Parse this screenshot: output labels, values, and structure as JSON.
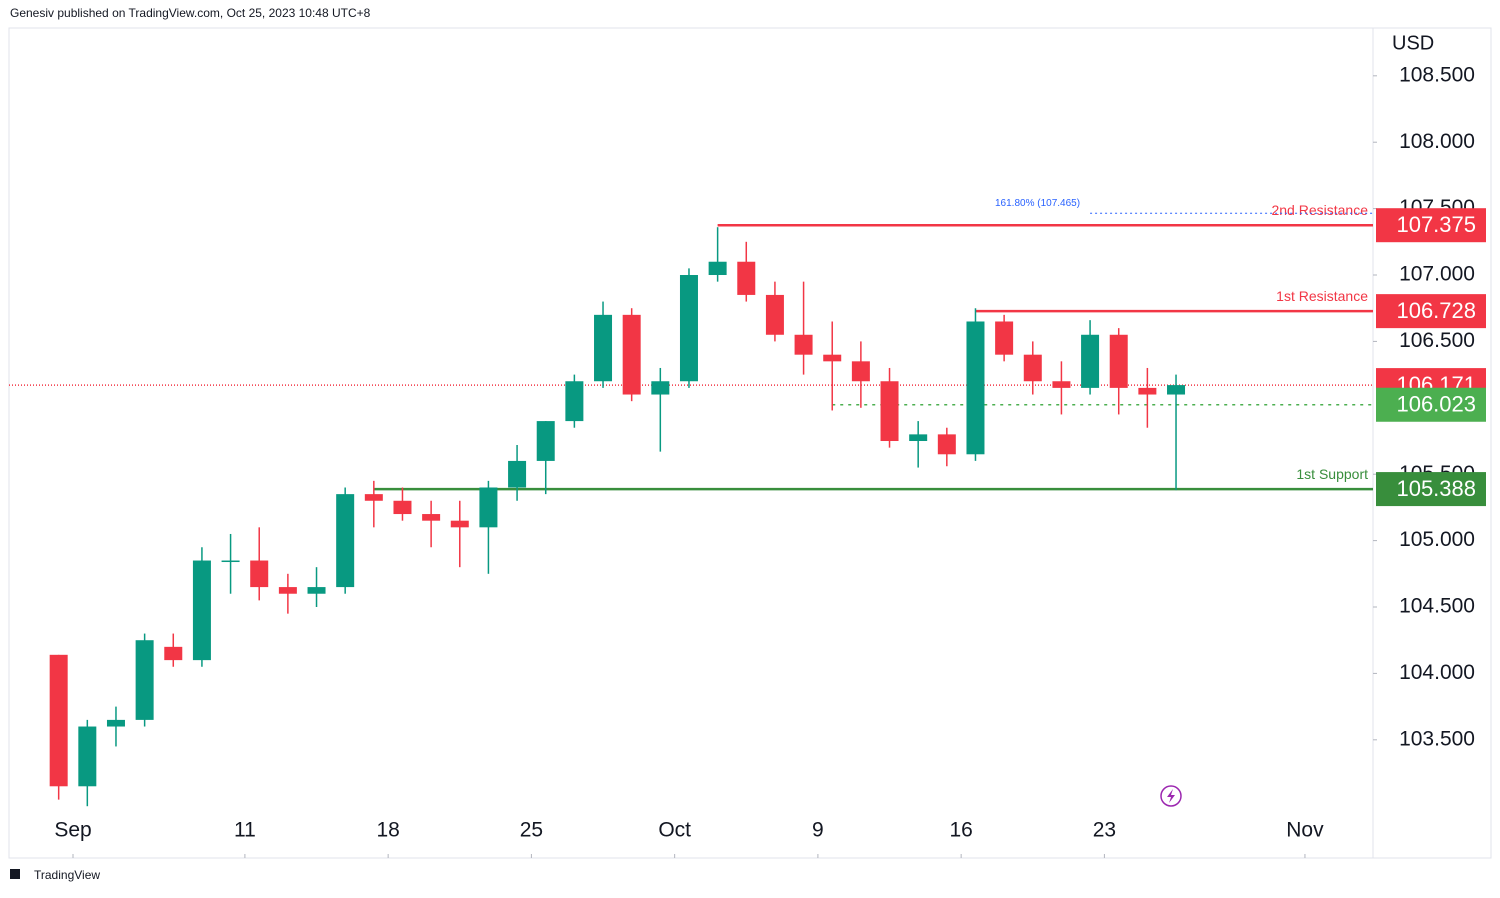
{
  "header": "Genesiv published on TradingView.com, Oct 25, 2023 10:48 UTC+8",
  "footer": "TradingView",
  "chart_data": {
    "type": "candlestick",
    "currency": "USD",
    "up_color": "#089981",
    "down_color": "#f23645",
    "x": [
      "2023-08-31",
      "2023-09-01",
      "2023-09-04",
      "2023-09-05",
      "2023-09-06",
      "2023-09-07",
      "2023-09-08",
      "2023-09-11",
      "2023-09-12",
      "2023-09-13",
      "2023-09-14",
      "2023-09-15",
      "2023-09-18",
      "2023-09-19",
      "2023-09-20",
      "2023-09-21",
      "2023-09-22",
      "2023-09-25",
      "2023-09-26",
      "2023-09-27",
      "2023-09-28",
      "2023-09-29",
      "2023-10-02",
      "2023-10-03",
      "2023-10-04",
      "2023-10-05",
      "2023-10-06",
      "2023-10-09",
      "2023-10-10",
      "2023-10-11",
      "2023-10-12",
      "2023-10-13",
      "2023-10-16",
      "2023-10-17",
      "2023-10-18",
      "2023-10-19",
      "2023-10-20",
      "2023-10-23",
      "2023-10-24",
      "2023-10-25"
    ],
    "open": [
      104.14,
      103.15,
      103.6,
      103.65,
      104.2,
      104.1,
      104.85,
      104.85,
      104.65,
      104.6,
      104.65,
      105.35,
      105.3,
      105.2,
      105.15,
      105.1,
      105.4,
      105.6,
      105.9,
      106.2,
      106.7,
      106.1,
      106.2,
      107.0,
      107.1,
      106.85,
      106.55,
      106.4,
      106.35,
      106.2,
      105.75,
      105.8,
      105.65,
      106.65,
      106.4,
      106.2,
      106.15,
      106.55,
      106.15,
      106.1
    ],
    "high": [
      104.14,
      103.65,
      103.75,
      104.3,
      104.3,
      104.95,
      105.05,
      105.1,
      104.75,
      104.8,
      105.4,
      105.45,
      105.4,
      105.3,
      105.3,
      105.45,
      105.72,
      105.9,
      106.25,
      106.8,
      106.75,
      106.3,
      107.05,
      107.36,
      107.25,
      106.95,
      106.95,
      106.65,
      106.5,
      106.3,
      105.9,
      105.85,
      106.75,
      106.7,
      106.5,
      106.35,
      106.66,
      106.6,
      106.3,
      106.25
    ],
    "low": [
      103.05,
      103.0,
      103.45,
      103.6,
      104.05,
      104.05,
      104.6,
      104.55,
      104.45,
      104.5,
      104.6,
      105.1,
      105.15,
      104.95,
      104.8,
      104.75,
      105.3,
      105.35,
      105.85,
      106.15,
      106.05,
      105.67,
      106.15,
      106.95,
      106.8,
      106.5,
      106.25,
      105.98,
      106.0,
      105.7,
      105.55,
      105.56,
      105.6,
      106.35,
      106.1,
      105.95,
      106.1,
      105.95,
      105.85,
      105.38
    ],
    "close": [
      103.15,
      103.6,
      103.65,
      104.25,
      104.1,
      104.85,
      104.85,
      104.65,
      104.6,
      104.65,
      105.35,
      105.3,
      105.2,
      105.15,
      105.1,
      105.4,
      105.6,
      105.9,
      106.2,
      106.7,
      106.1,
      106.2,
      107.0,
      107.1,
      106.85,
      106.55,
      106.4,
      106.35,
      106.2,
      105.75,
      105.8,
      105.65,
      106.65,
      106.4,
      106.2,
      106.15,
      106.55,
      106.15,
      106.1,
      106.171
    ],
    "ylim": [
      102.61,
      108.86
    ],
    "yticks": [
      {
        "value": 103.5,
        "label": "103.500"
      },
      {
        "value": 104,
        "label": "104.000"
      },
      {
        "value": 104.5,
        "label": "104.500"
      },
      {
        "value": 105,
        "label": "105.000"
      },
      {
        "value": 105.5,
        "label": "105.500"
      },
      {
        "value": 106.5,
        "label": "106.500"
      },
      {
        "value": 107,
        "label": "107.000"
      },
      {
        "value": 107.5,
        "label": "107.500"
      },
      {
        "value": 108,
        "label": "108.000"
      },
      {
        "value": 108.5,
        "label": "108.500"
      }
    ],
    "xticks": [
      {
        "value": "2023-09-01",
        "label": "Sep"
      },
      {
        "value": "2023-09-11",
        "label": "11"
      },
      {
        "value": "2023-09-18",
        "label": "18"
      },
      {
        "value": "2023-09-25",
        "label": "25"
      },
      {
        "value": "2023-10-02",
        "label": "Oct"
      },
      {
        "value": "2023-10-09",
        "label": "9"
      },
      {
        "value": "2023-10-16",
        "label": "16"
      },
      {
        "value": "2023-10-23",
        "label": "23"
      },
      {
        "value": "2023-11-01",
        "label": "Nov"
      }
    ],
    "levels": [
      {
        "name": "2nd Resistance",
        "value": 107.375,
        "color": "#f23645",
        "from": "2023-10-03",
        "style": "solid"
      },
      {
        "name": "1st Resistance",
        "value": 106.728,
        "color": "#f23645",
        "from": "2023-10-16",
        "style": "solid"
      },
      {
        "value": 106.171,
        "color": "#f23645",
        "from": "2023-08-31",
        "style": "dotted"
      },
      {
        "value": 106.023,
        "color": "#4caf50",
        "from": "2023-10-09",
        "style": "dotted"
      },
      {
        "name": "1st Support",
        "value": 105.388,
        "color": "#388e3c",
        "from": "2023-09-15",
        "style": "solid"
      }
    ],
    "fib": {
      "label": "161.80% (107.465)",
      "value": 107.465,
      "from": "2023-10-20",
      "color": "#2962ff"
    }
  }
}
